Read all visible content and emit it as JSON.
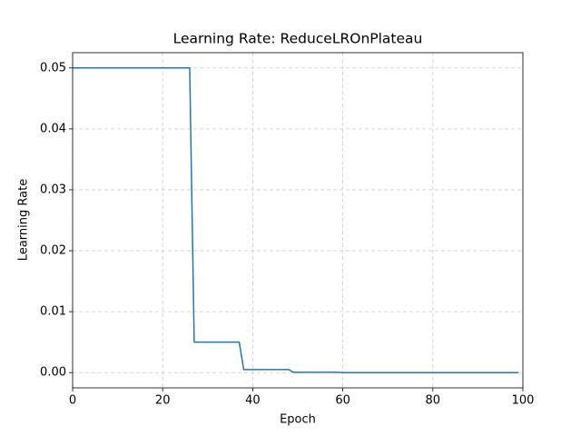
{
  "chart_data": {
    "type": "line",
    "title": "Learning Rate: ReduceLROnPlateau",
    "xlabel": "Epoch",
    "ylabel": "Learning Rate",
    "x": [
      0,
      1,
      2,
      3,
      4,
      5,
      6,
      7,
      8,
      9,
      10,
      11,
      12,
      13,
      14,
      15,
      16,
      17,
      18,
      19,
      20,
      21,
      22,
      23,
      24,
      25,
      26,
      27,
      28,
      29,
      30,
      31,
      32,
      33,
      34,
      35,
      36,
      37,
      38,
      39,
      40,
      41,
      42,
      43,
      44,
      45,
      46,
      47,
      48,
      49,
      50,
      51,
      52,
      53,
      54,
      55,
      56,
      57,
      58,
      59,
      60,
      61,
      62,
      63,
      64,
      65,
      66,
      67,
      68,
      69,
      70,
      71,
      72,
      73,
      74,
      75,
      76,
      77,
      78,
      79,
      80,
      81,
      82,
      83,
      84,
      85,
      86,
      87,
      88,
      89,
      90,
      91,
      92,
      93,
      94,
      95,
      96,
      97,
      98,
      99
    ],
    "values": [
      0.05,
      0.05,
      0.05,
      0.05,
      0.05,
      0.05,
      0.05,
      0.05,
      0.05,
      0.05,
      0.05,
      0.05,
      0.05,
      0.05,
      0.05,
      0.05,
      0.05,
      0.05,
      0.05,
      0.05,
      0.05,
      0.05,
      0.05,
      0.05,
      0.05,
      0.05,
      0.05,
      0.005,
      0.005,
      0.005,
      0.005,
      0.005,
      0.005,
      0.005,
      0.005,
      0.005,
      0.005,
      0.005,
      0.0005,
      0.0005,
      0.0005,
      0.0005,
      0.0005,
      0.0005,
      0.0005,
      0.0005,
      0.0005,
      0.0005,
      0.0005,
      5e-05,
      5e-05,
      5e-05,
      5e-05,
      5e-05,
      5e-05,
      5e-05,
      5e-05,
      5e-05,
      5e-05,
      5e-05,
      5e-06,
      5e-06,
      5e-06,
      5e-06,
      5e-06,
      5e-06,
      5e-06,
      5e-06,
      5e-06,
      5e-06,
      5e-06,
      5e-07,
      5e-07,
      5e-07,
      5e-07,
      5e-07,
      5e-07,
      5e-07,
      5e-07,
      5e-07,
      5e-07,
      5e-07,
      5e-08,
      5e-08,
      5e-08,
      5e-08,
      5e-08,
      5e-08,
      5e-08,
      5e-08,
      5e-08,
      5e-08,
      5e-08,
      5e-09,
      5e-09,
      5e-09,
      5e-09,
      5e-09,
      5e-09,
      5e-09
    ],
    "color": "#1f77b4",
    "xlim": [
      0,
      100
    ],
    "ylim": [
      -0.0025,
      0.0525
    ],
    "xticks": [
      0,
      20,
      40,
      60,
      80,
      100
    ],
    "yticks": [
      {
        "value": 0,
        "label": "0.00"
      },
      {
        "value": 0.01,
        "label": "0.01"
      },
      {
        "value": 0.02,
        "label": "0.02"
      },
      {
        "value": 0.03,
        "label": "0.03"
      },
      {
        "value": 0.04,
        "label": "0.04"
      },
      {
        "value": 0.05,
        "label": "0.05"
      }
    ],
    "grid": true
  }
}
